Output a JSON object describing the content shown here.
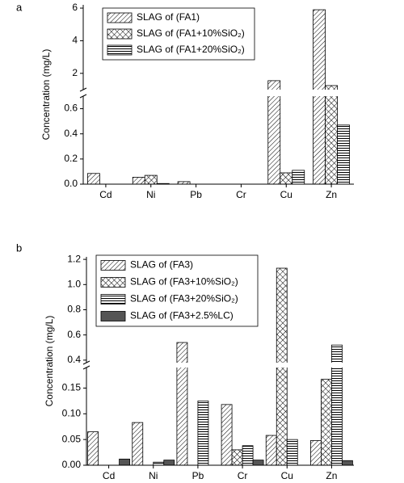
{
  "chart_data": [
    {
      "type": "bar",
      "label": "a",
      "y_label": "Concentration (mg/L)",
      "categories": [
        "Cd",
        "Ni",
        "Pb",
        "Cr",
        "Cu",
        "Zn"
      ],
      "ylim": [
        0,
        6.2
      ],
      "y_break": [
        0.7,
        1.0
      ],
      "yticks": [
        {
          "value": 0,
          "label": "0.0"
        },
        0.2,
        0.4,
        0.6,
        2,
        4,
        6
      ],
      "series": [
        {
          "name": "SLAG of (FA1)",
          "color": "#000000",
          "pattern": "diagonal",
          "values": [
            0.085,
            0.055,
            0.02,
            0,
            1.55,
            5.9
          ]
        },
        {
          "name": "SLAG of (FA1+10%SiO₂)",
          "color": "#000000",
          "pattern": "cross",
          "values": [
            0,
            0.07,
            0,
            0,
            0.09,
            1.25
          ]
        },
        {
          "name": "SLAG of (FA1+20%SiO₂)",
          "color": "#000000",
          "pattern": "horizontal",
          "values": [
            0,
            0.005,
            0,
            0,
            0.11,
            0.47
          ]
        }
      ]
    },
    {
      "type": "bar",
      "label": "b",
      "y_label": "Concentration (mg/L)",
      "categories": [
        "Cd",
        "Ni",
        "Pb",
        "Cr",
        "Cu",
        "Zn"
      ],
      "ylim": [
        0,
        1.22
      ],
      "y_break": [
        0.19,
        0.38
      ],
      "yticks": [
        {
          "value": 0,
          "label": "0.00"
        },
        0.05,
        {
          "value": 0.1,
          "label": "0.10"
        },
        0.15,
        0.4,
        0.6,
        0.8,
        {
          "value": 1.0,
          "label": "1.0"
        },
        1.2
      ],
      "series": [
        {
          "name": "SLAG of (FA3)",
          "color": "#000000",
          "pattern": "diagonal",
          "values": [
            0.065,
            0.083,
            0.54,
            0.118,
            0.058,
            0.048
          ]
        },
        {
          "name": "SLAG of (FA3+10%SiO₂)",
          "color": "#000000",
          "pattern": "cross",
          "values": [
            0,
            0,
            0,
            0.03,
            1.13,
            0.167
          ]
        },
        {
          "name": "SLAG of (FA3+20%SiO₂)",
          "color": "#000000",
          "pattern": "horizontal",
          "values": [
            0,
            0.006,
            0.125,
            0.038,
            0.05,
            0.52
          ]
        },
        {
          "name": "SLAG of (FA3+2.5%LC)",
          "color": "#555555",
          "pattern": "solid",
          "values": [
            0.012,
            0.01,
            0,
            0.01,
            0,
            0.009
          ]
        }
      ]
    }
  ]
}
